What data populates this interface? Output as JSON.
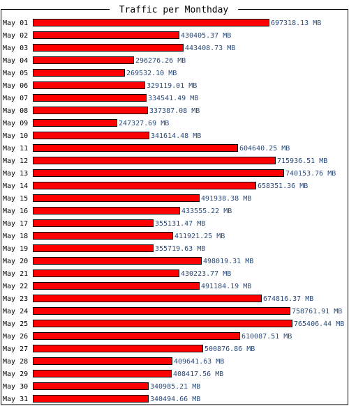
{
  "colors": {
    "bar_fill": "#ff0000",
    "bar_stroke": "#000000",
    "value_text": "#2a4a7a",
    "frame": "#000000",
    "background": "#ffffff"
  },
  "chart_data": {
    "type": "bar",
    "orientation": "horizontal",
    "title": "Traffic per Monthday",
    "unit": "MB",
    "categories": [
      "May 01",
      "May 02",
      "May 03",
      "May 04",
      "May 05",
      "May 06",
      "May 07",
      "May 08",
      "May 09",
      "May 10",
      "May 11",
      "May 12",
      "May 13",
      "May 14",
      "May 15",
      "May 16",
      "May 17",
      "May 18",
      "May 19",
      "May 20",
      "May 21",
      "May 22",
      "May 23",
      "May 24",
      "May 25",
      "May 26",
      "May 27",
      "May 28",
      "May 29",
      "May 30",
      "May 31"
    ],
    "values": [
      697318.13,
      430405.37,
      443408.73,
      296276.26,
      269532.1,
      329119.01,
      334541.49,
      337387.08,
      247327.69,
      341614.48,
      604640.25,
      715936.51,
      740153.76,
      658351.36,
      491938.38,
      433555.22,
      355131.47,
      411921.25,
      355719.63,
      498019.31,
      430223.77,
      491184.19,
      674816.37,
      758761.91,
      765406.44,
      610087.51,
      500876.86,
      409641.63,
      408417.56,
      340985.21,
      340494.66
    ],
    "value_labels": [
      "697318.13 MB",
      "430405.37 MB",
      "443408.73 MB",
      "296276.26 MB",
      "269532.10 MB",
      "329119.01 MB",
      "334541.49 MB",
      "337387.08 MB",
      "247327.69 MB",
      "341614.48 MB",
      "604640.25 MB",
      "715936.51 MB",
      "740153.76 MB",
      "658351.36 MB",
      "491938.38 MB",
      "433555.22 MB",
      "355131.47 MB",
      "411921.25 MB",
      "355719.63 MB",
      "498019.31 MB",
      "430223.77 MB",
      "491184.19 MB",
      "674816.37 MB",
      "758761.91 MB",
      "765406.44 MB",
      "610087.51 MB",
      "500876.86 MB",
      "409641.63 MB",
      "408417.56 MB",
      "340985.21 MB",
      "340494.66 MB"
    ],
    "grid": false,
    "legend": "none"
  }
}
